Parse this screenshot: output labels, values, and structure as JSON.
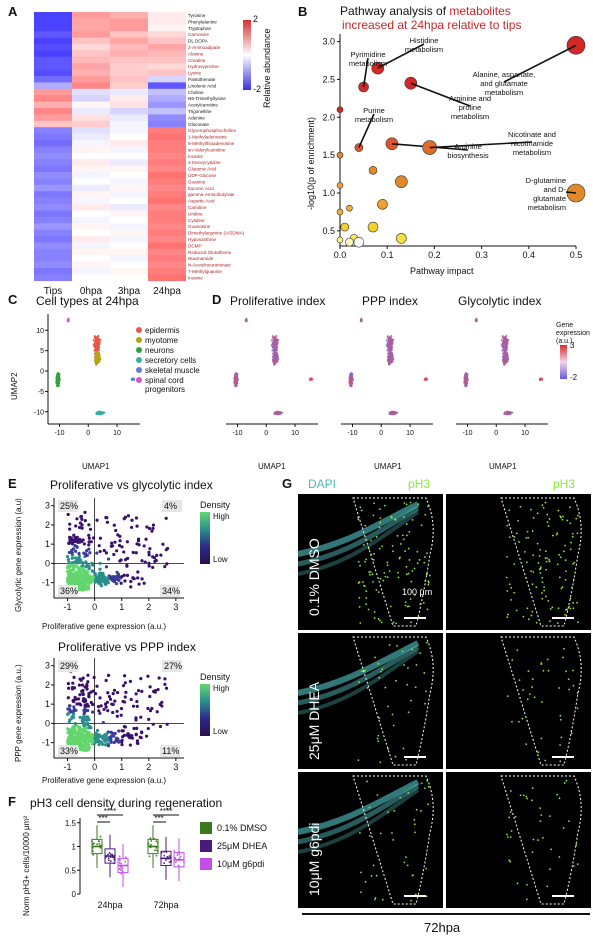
{
  "panels": {
    "A": {
      "letter": "A",
      "legend_title": "Relative abundance",
      "legend_max": "2",
      "legend_min": "-2",
      "columns": [
        "Tips",
        "0hpa",
        "3hpa",
        "24hpa"
      ],
      "rows": [
        {
          "name": "Tyrosine",
          "color": "#111111",
          "v": [
            -1.8,
            1.0,
            0.8,
            0.2
          ]
        },
        {
          "name": "Phenylalanine",
          "color": "#111111",
          "v": [
            -1.8,
            0.9,
            1.0,
            0.2
          ]
        },
        {
          "name": "Tryptophan",
          "color": "#111111",
          "v": [
            -1.8,
            0.9,
            1.0,
            0.1
          ]
        },
        {
          "name": "Carnosine",
          "color": "#b22222",
          "v": [
            -1.6,
            1.0,
            0.6,
            0.4
          ]
        },
        {
          "name": "DL DOPA",
          "color": "#111111",
          "v": [
            -1.8,
            0.6,
            0.9,
            0.6
          ]
        },
        {
          "name": "2-Aminoadipate",
          "color": "#b22222",
          "v": [
            -1.7,
            0.4,
            0.7,
            0.9
          ]
        },
        {
          "name": "Alanine",
          "color": "#b22222",
          "v": [
            -1.8,
            0.6,
            0.8,
            0.7
          ]
        },
        {
          "name": "Creatine",
          "color": "#b22222",
          "v": [
            -1.6,
            0.7,
            0.6,
            0.6
          ]
        },
        {
          "name": "Hydroxyproline",
          "color": "#b22222",
          "v": [
            -1.6,
            0.9,
            0.5,
            0.4
          ]
        },
        {
          "name": "Lysine",
          "color": "#b22222",
          "v": [
            -1.7,
            0.8,
            0.5,
            0.6
          ]
        },
        {
          "name": "Pantothenate",
          "color": "#111111",
          "v": [
            -1.4,
            1.0,
            0.6,
            -0.4
          ]
        },
        {
          "name": "Linolenic Acid",
          "color": "#111111",
          "v": [
            -0.8,
            1.2,
            0.5,
            -1.6
          ]
        },
        {
          "name": "Choline",
          "color": "#111111",
          "v": [
            1.0,
            -0.3,
            -0.2,
            -0.6
          ]
        },
        {
          "name": "N6-Trimethyllysine",
          "color": "#111111",
          "v": [
            1.2,
            -0.4,
            0.2,
            -0.8
          ]
        },
        {
          "name": "Acetylcarnitine",
          "color": "#111111",
          "v": [
            0.8,
            0.1,
            0.3,
            -1.0
          ]
        },
        {
          "name": "Trigonelline",
          "color": "#111111",
          "v": [
            1.2,
            -0.2,
            -0.4,
            -0.6
          ]
        },
        {
          "name": "Adenine",
          "color": "#111111",
          "v": [
            1.0,
            0.3,
            -0.2,
            -1.1
          ]
        },
        {
          "name": "Gluconate",
          "color": "#111111",
          "v": [
            0.6,
            0.5,
            -0.1,
            -1.2
          ]
        },
        {
          "name": "Glycerophosphocholine",
          "color": "#b22222",
          "v": [
            -1.2,
            -0.3,
            -0.1,
            1.3
          ]
        },
        {
          "name": "1-Methyladenosine",
          "color": "#b22222",
          "v": [
            -1.3,
            -0.2,
            0.0,
            1.4
          ]
        },
        {
          "name": "6-Methylthioadenosine",
          "color": "#b22222",
          "v": [
            -1.4,
            -0.1,
            0.2,
            1.3
          ]
        },
        {
          "name": "sn-Valerylcarnitine",
          "color": "#b22222",
          "v": [
            -1.2,
            0.1,
            -0.1,
            1.3
          ]
        },
        {
          "name": "Inositol",
          "color": "#b22222",
          "v": [
            -1.1,
            0.0,
            0.0,
            1.2
          ]
        },
        {
          "name": "2-Deoxycytidine",
          "color": "#b22222",
          "v": [
            -1.2,
            0.2,
            -0.2,
            1.3
          ]
        },
        {
          "name": "Glutamic Acid",
          "color": "#b22222",
          "v": [
            -1.3,
            0.1,
            0.1,
            1.2
          ]
        },
        {
          "name": "UDP-Glucose",
          "color": "#b22222",
          "v": [
            -1.1,
            -0.1,
            0.0,
            1.4
          ]
        },
        {
          "name": "Guanine",
          "color": "#b22222",
          "v": [
            -1.2,
            0.0,
            -0.1,
            1.3
          ]
        },
        {
          "name": "Itaconic Acid",
          "color": "#b22222",
          "v": [
            -1.0,
            -0.2,
            0.1,
            1.2
          ]
        },
        {
          "name": "gamma-Aminobutyrate",
          "color": "#b22222",
          "v": [
            -1.3,
            0.1,
            -0.1,
            1.3
          ]
        },
        {
          "name": "Aspartic Acid",
          "color": "#b22222",
          "v": [
            -1.2,
            -0.1,
            0.0,
            1.4
          ]
        },
        {
          "name": "Carnitine",
          "color": "#b22222",
          "v": [
            -1.1,
            0.2,
            -0.2,
            1.2
          ]
        },
        {
          "name": "Uridine",
          "color": "#b22222",
          "v": [
            -1.3,
            0.0,
            0.1,
            1.3
          ]
        },
        {
          "name": "Cytidine",
          "color": "#b22222",
          "v": [
            -1.2,
            -0.1,
            0.0,
            1.3
          ]
        },
        {
          "name": "Guanosine",
          "color": "#b22222",
          "v": [
            -1.0,
            0.1,
            -0.1,
            1.2
          ]
        },
        {
          "name": "Dimethylarginine (A/SDMA)",
          "color": "#b22222",
          "v": [
            -1.2,
            0.0,
            0.1,
            1.3
          ]
        },
        {
          "name": "Hypoxanthine",
          "color": "#b22222",
          "v": [
            -1.3,
            0.2,
            -0.1,
            1.2
          ]
        },
        {
          "name": "DCMP",
          "color": "#b22222",
          "v": [
            -1.1,
            -0.1,
            0.0,
            1.4
          ]
        },
        {
          "name": "Reduced Glutathione",
          "color": "#b22222",
          "v": [
            -1.2,
            0.1,
            0.1,
            1.2
          ]
        },
        {
          "name": "Niacinamide",
          "color": "#b22222",
          "v": [
            -1.2,
            0.0,
            -0.1,
            1.3
          ]
        },
        {
          "name": "N-Acetylneuraminate",
          "color": "#b22222",
          "v": [
            -1.1,
            0.1,
            0.0,
            1.2
          ]
        },
        {
          "name": "7-Methylguanine",
          "color": "#b22222",
          "v": [
            -1.3,
            -0.1,
            0.1,
            1.3
          ]
        },
        {
          "name": "Inosine",
          "color": "#b22222",
          "v": [
            -1.2,
            0.0,
            0.0,
            1.4
          ]
        }
      ]
    },
    "B": {
      "letter": "B",
      "title_line1": "Pathway analysis of ",
      "title_highlight": "metabolites",
      "title_line2": "increased at 24hpa relative to tips",
      "title_highlight_color": "#c62828",
      "xlabel": "Pathway impact",
      "ylabel": "-log10(p of enrichment)",
      "chart_data": {
        "type": "scatter",
        "xlim": [
          0,
          0.5
        ],
        "ylim": [
          0.3,
          3.1
        ],
        "xticks": [
          "0.0",
          "0.1",
          "0.2",
          "0.3",
          "0.4",
          "0.5"
        ],
        "yticks": [
          "0.5",
          "1.0",
          "1.5",
          "2.0",
          "2.5",
          "3.0"
        ],
        "points": [
          {
            "x": 0.5,
            "y": 2.95,
            "size": 9,
            "color": "#d62728",
            "label": "Alanine, aspartate, and glutamate metabolism"
          },
          {
            "x": 0.08,
            "y": 2.65,
            "size": 6,
            "color": "#d62728",
            "label": "Histidine metabolism"
          },
          {
            "x": 0.05,
            "y": 2.4,
            "size": 5,
            "color": "#d62728",
            "label": "Pyrimidine metabolism"
          },
          {
            "x": 0.15,
            "y": 2.45,
            "size": 6,
            "color": "#d62728",
            "label": "Arginine and proline metabolism"
          },
          {
            "x": 0.0,
            "y": 2.1,
            "size": 3,
            "color": "#d62728",
            "label": ""
          },
          {
            "x": 0.04,
            "y": 1.6,
            "size": 4,
            "color": "#e0552a",
            "label": "Purine metabolism"
          },
          {
            "x": 0.11,
            "y": 1.65,
            "size": 6,
            "color": "#e0552a",
            "label": "Arginine biosynthesis"
          },
          {
            "x": 0.19,
            "y": 1.6,
            "size": 7,
            "color": "#e06b2a",
            "label": "Nicotinate and nicotinamide metabolism"
          },
          {
            "x": 0.5,
            "y": 1.0,
            "size": 9,
            "color": "#e08a2a",
            "label": "D-glutamine and D-glutamate metabolism"
          },
          {
            "x": 0.13,
            "y": 1.15,
            "size": 6,
            "color": "#e08a2a",
            "label": ""
          },
          {
            "x": 0.07,
            "y": 1.3,
            "size": 4,
            "color": "#e08a2a",
            "label": ""
          },
          {
            "x": 0.0,
            "y": 1.5,
            "size": 3,
            "color": "#e08a2a",
            "label": ""
          },
          {
            "x": 0.0,
            "y": 1.1,
            "size": 3,
            "color": "#f0a030",
            "label": ""
          },
          {
            "x": 0.09,
            "y": 0.85,
            "size": 5,
            "color": "#f0a030",
            "label": ""
          },
          {
            "x": 0.02,
            "y": 0.8,
            "size": 3,
            "color": "#f0b030",
            "label": ""
          },
          {
            "x": 0.0,
            "y": 0.75,
            "size": 3,
            "color": "#f0b030",
            "label": ""
          },
          {
            "x": 0.07,
            "y": 0.55,
            "size": 5,
            "color": "#f5d030",
            "label": ""
          },
          {
            "x": 0.01,
            "y": 0.55,
            "size": 4,
            "color": "#f5d030",
            "label": ""
          },
          {
            "x": 0.13,
            "y": 0.4,
            "size": 5,
            "color": "#f8e040",
            "label": ""
          },
          {
            "x": 0.03,
            "y": 0.4,
            "size": 4,
            "color": "#f8e860",
            "label": ""
          },
          {
            "x": 0.0,
            "y": 0.38,
            "size": 3,
            "color": "#fbee80",
            "label": ""
          },
          {
            "x": 0.04,
            "y": 0.35,
            "size": 5,
            "color": "#ffffff",
            "label": ""
          },
          {
            "x": 0.02,
            "y": 0.35,
            "size": 4,
            "color": "#fff7c0",
            "label": ""
          }
        ]
      }
    },
    "C": {
      "letter": "C",
      "title": "Cell types at 24hpa",
      "xlabel": "UMAP1",
      "ylabel": "UMAP2",
      "xticks": [
        "-10",
        "0",
        "10"
      ],
      "yticks": [
        "10",
        "5",
        "0",
        "-5",
        "-10"
      ],
      "legend": [
        {
          "name": "epidermis",
          "color": "#e4584a"
        },
        {
          "name": "myotome",
          "color": "#b7a218"
        },
        {
          "name": "neurons",
          "color": "#33a33a"
        },
        {
          "name": "secretory cells",
          "color": "#3aada6"
        },
        {
          "name": "skeletal muscle",
          "color": "#5a7fd8"
        },
        {
          "name": "spinal cord progenitors",
          "color": "#d455cc"
        }
      ]
    },
    "D": {
      "letter": "D",
      "titles": [
        "Proliferative index",
        "PPP index",
        "Glycolytic index"
      ],
      "xlabel": "UMAP1",
      "xticks": [
        "-10",
        "0",
        "10"
      ],
      "legend_title": "Gene expression (a.u.)",
      "legend_max": "3",
      "legend_min": "-2"
    },
    "E": {
      "letter": "E",
      "plot1": {
        "title": "Proliferative vs glycolytic index",
        "xlabel": "Proliferative gene expression (a.u.)",
        "ylabel": "Glycolytic gene expression (a.u)",
        "quadrants": {
          "tl": "25%",
          "tr": "4%",
          "bl": "36%",
          "br": "34%"
        },
        "xticks": [
          "-1",
          "0",
          "1",
          "2",
          "3"
        ],
        "yticks": [
          "3",
          "2",
          "1",
          "0",
          "-1"
        ]
      },
      "plot2": {
        "title": "Proliferative vs PPP index",
        "xlabel": "Proliferative gene expression (a.u.)",
        "ylabel": "PPP gene expression (a.u.)",
        "quadrants": {
          "tl": "29%",
          "tr": "27%",
          "bl": "33%",
          "br": "11%"
        },
        "xticks": [
          "-1",
          "0",
          "1",
          "2",
          "3"
        ],
        "yticks": [
          "3",
          "2",
          "1",
          "0",
          "-1"
        ]
      },
      "density_title": "Density",
      "density_high": "High",
      "density_low": "Low"
    },
    "F": {
      "letter": "F",
      "title": "pH3 cell density during regeneration",
      "ylabel": "Norm pH3+ cells/10000 μm²",
      "groups": [
        "24hpa",
        "72hpa"
      ],
      "yticks": [
        "1.5",
        "1",
        "0.5",
        "0"
      ],
      "sig": {
        "g1_a": "***",
        "g1_b": "****",
        "g2_a": "***",
        "g2_b": "****"
      },
      "legend": [
        {
          "name": "0.1% DMSO",
          "color": "#3a7a1e"
        },
        {
          "name": "25μM DHEA",
          "color": "#4b1a7a"
        },
        {
          "name": "10μM g6pdi",
          "color": "#c050e8"
        }
      ],
      "chart_data": {
        "type": "box",
        "medians": {
          "24hpa": [
            1.0,
            0.8,
            0.6
          ],
          "72hpa": [
            1.0,
            0.75,
            0.72
          ]
        }
      }
    },
    "G": {
      "letter": "G",
      "channel_dapi": "DAPI",
      "channel_ph3": "pH3",
      "channel_ph3_2": "pH3",
      "dapi_color": "#4fb8b8",
      "ph3_color": "#8ae83a",
      "conditions": [
        "0.1% DMSO",
        "25μM DHEA",
        "10μM g6pdi"
      ],
      "scale_label": "100 μm",
      "timepoint": "72hpa"
    }
  }
}
